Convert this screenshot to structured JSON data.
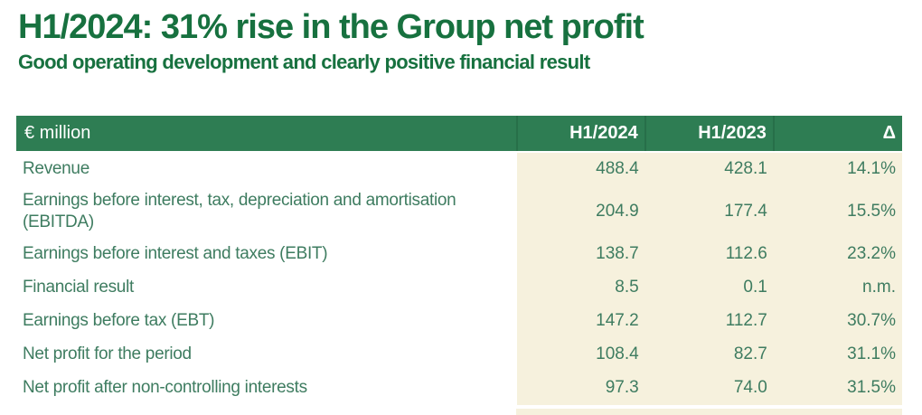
{
  "slide": {
    "title": "H1/2024: 31% rise in the Group net profit",
    "subtitle": "Good operating development and clearly positive financial result"
  },
  "table": {
    "unit_label": "€ million",
    "columns": [
      "H1/2024",
      "H1/2023",
      "Δ"
    ],
    "rows": [
      {
        "label": "Revenue",
        "h1_2024": "488.4",
        "h1_2023": "428.1",
        "delta": "14.1%"
      },
      {
        "label": "Earnings before interest, tax, depreciation and amortisation (EBITDA)",
        "h1_2024": "204.9",
        "h1_2023": "177.4",
        "delta": "15.5%"
      },
      {
        "label": "Earnings before interest and taxes (EBIT)",
        "h1_2024": "138.7",
        "h1_2023": "112.6",
        "delta": "23.2%"
      },
      {
        "label": "Financial result",
        "h1_2024": "8.5",
        "h1_2023": "0.1",
        "delta": "n.m."
      },
      {
        "label": "Earnings before tax (EBT)",
        "h1_2024": "147.2",
        "h1_2023": "112.7",
        "delta": "30.7%"
      },
      {
        "label": "Net profit for the period",
        "h1_2024": "108.4",
        "h1_2023": "82.7",
        "delta": "31.1%"
      },
      {
        "label": "Net profit after non-controlling interests",
        "h1_2024": "97.3",
        "h1_2023": "74.0",
        "delta": "31.5%"
      }
    ]
  },
  "colors": {
    "title_green": "#17713F",
    "header_bg": "#2E7D53",
    "header_divider": "#276F49",
    "header_text": "#FFFFFF",
    "body_text": "#3E7C60",
    "numeric_bg": "#F6F1DD",
    "page_bg": "#FFFFFF"
  }
}
